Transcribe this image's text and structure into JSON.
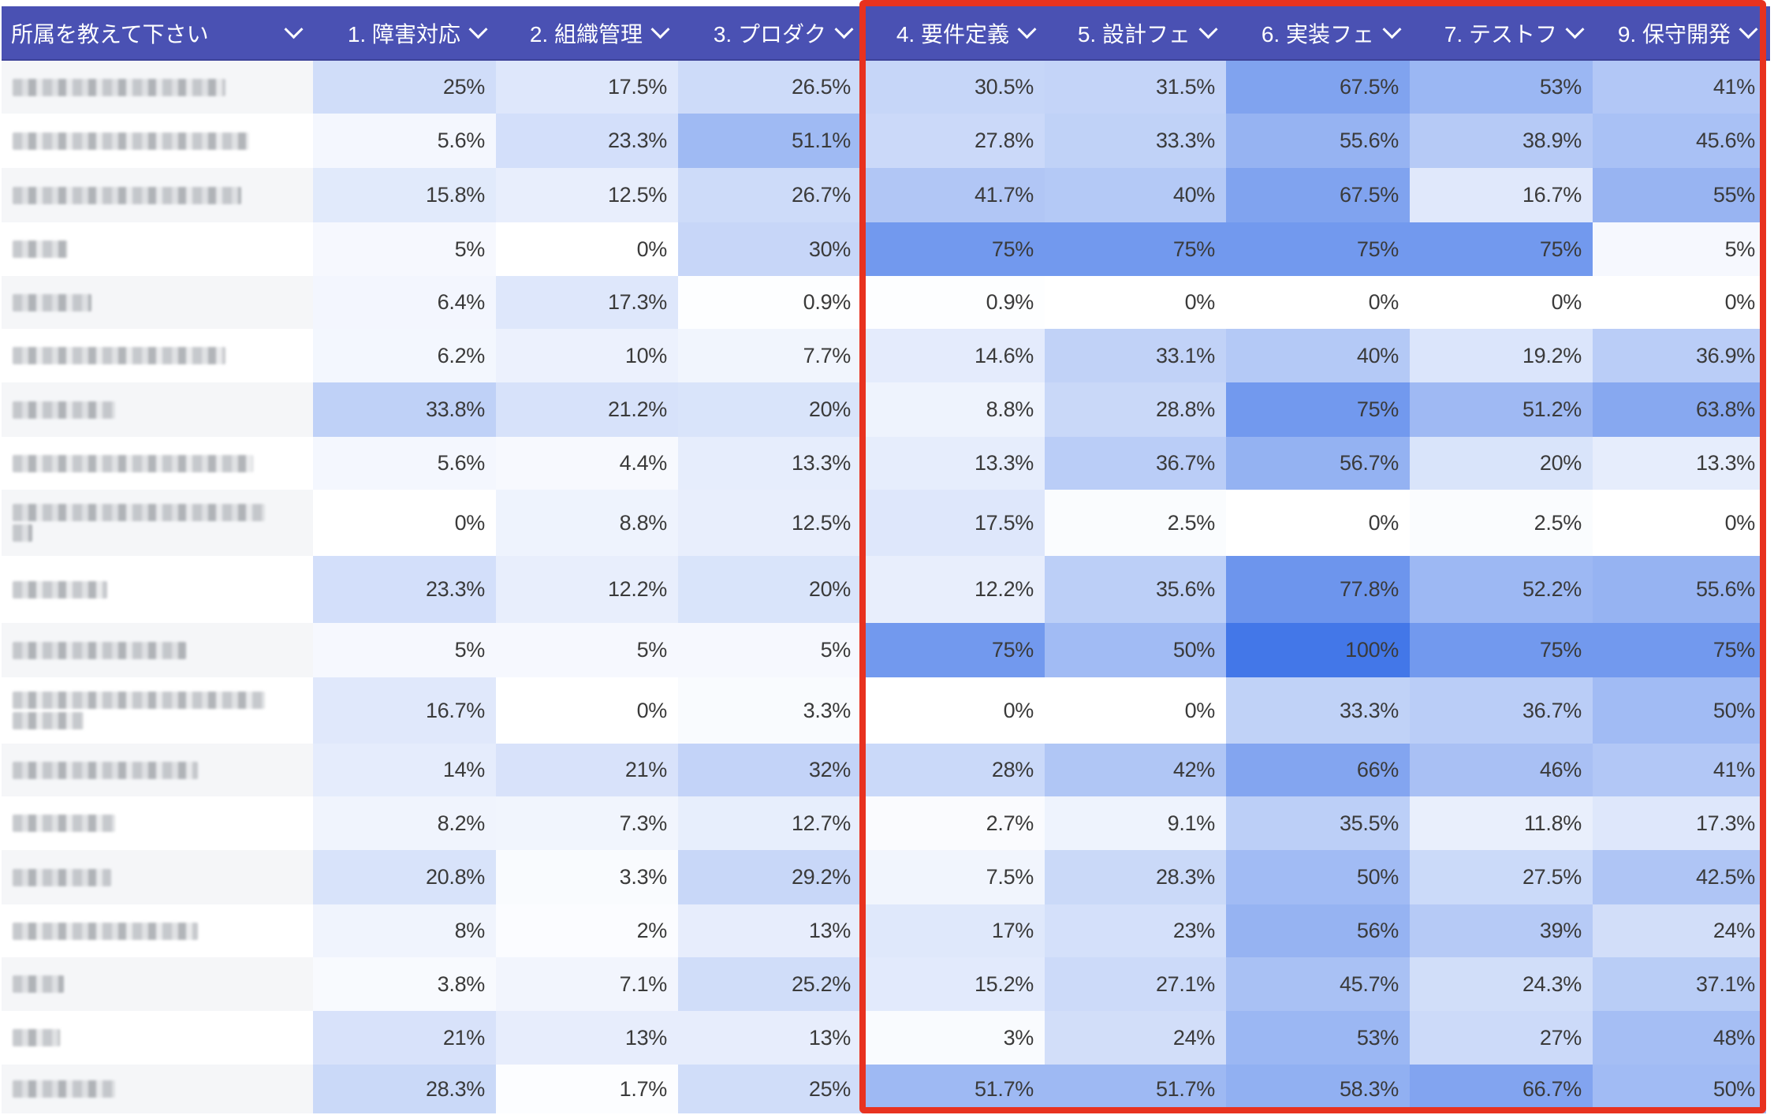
{
  "table": {
    "header": {
      "row_label_column": "所属を教えて下さい",
      "columns": [
        "1. 障害対応",
        "2. 組織管理",
        "3. プロダク",
        "4. 要件定義",
        "5. 設計フェ",
        "6. 実装フェ",
        "7. テストフ",
        "9. 保守開発"
      ],
      "dropdown_icon": "chevron-down-icon"
    },
    "row_labels_obscured": true,
    "rows": [
      {
        "label_lines": [
          1
        ],
        "label_width": [
          270
        ],
        "values": [
          "25%",
          "17.5%",
          "26.5%",
          "30.5%",
          "31.5%",
          "67.5%",
          "53%",
          "41%"
        ]
      },
      {
        "label_lines": [
          1
        ],
        "label_width": [
          300
        ],
        "values": [
          "5.6%",
          "23.3%",
          "51.1%",
          "27.8%",
          "33.3%",
          "55.6%",
          "38.9%",
          "45.6%"
        ]
      },
      {
        "label_lines": [
          1
        ],
        "label_width": [
          290
        ],
        "values": [
          "15.8%",
          "12.5%",
          "26.7%",
          "41.7%",
          "40%",
          "67.5%",
          "16.7%",
          "55%"
        ]
      },
      {
        "label_lines": [
          1
        ],
        "label_width": [
          70
        ],
        "values": [
          "5%",
          "0%",
          "30%",
          "75%",
          "75%",
          "75%",
          "75%",
          "5%"
        ]
      },
      {
        "label_lines": [
          1
        ],
        "label_width": [
          100
        ],
        "values": [
          "6.4%",
          "17.3%",
          "0.9%",
          "0.9%",
          "0%",
          "0%",
          "0%",
          "0%"
        ]
      },
      {
        "label_lines": [
          1
        ],
        "label_width": [
          270
        ],
        "values": [
          "6.2%",
          "10%",
          "7.7%",
          "14.6%",
          "33.1%",
          "40%",
          "19.2%",
          "36.9%"
        ]
      },
      {
        "label_lines": [
          1
        ],
        "label_width": [
          130
        ],
        "values": [
          "33.8%",
          "21.2%",
          "20%",
          "8.8%",
          "28.8%",
          "75%",
          "51.2%",
          "63.8%"
        ]
      },
      {
        "label_lines": [
          1
        ],
        "label_width": [
          305
        ],
        "values": [
          "5.6%",
          "4.4%",
          "13.3%",
          "13.3%",
          "36.7%",
          "56.7%",
          "20%",
          "13.3%"
        ]
      },
      {
        "label_lines": [
          2
        ],
        "label_width": [
          320,
          25
        ],
        "values": [
          "0%",
          "8.8%",
          "12.5%",
          "17.5%",
          "2.5%",
          "0%",
          "2.5%",
          "0%"
        ]
      },
      {
        "label_lines": [
          1
        ],
        "label_width": [
          120
        ],
        "values": [
          "23.3%",
          "12.2%",
          "20%",
          "12.2%",
          "35.6%",
          "77.8%",
          "52.2%",
          "55.6%"
        ]
      },
      {
        "label_lines": [
          1
        ],
        "label_width": [
          220
        ],
        "values": [
          "5%",
          "5%",
          "5%",
          "75%",
          "50%",
          "100%",
          "75%",
          "75%"
        ]
      },
      {
        "label_lines": [
          2
        ],
        "label_width": [
          320,
          90
        ],
        "values": [
          "16.7%",
          "0%",
          "3.3%",
          "0%",
          "0%",
          "33.3%",
          "36.7%",
          "50%"
        ]
      },
      {
        "label_lines": [
          1
        ],
        "label_width": [
          235
        ],
        "values": [
          "14%",
          "21%",
          "32%",
          "28%",
          "42%",
          "66%",
          "46%",
          "41%"
        ]
      },
      {
        "label_lines": [
          1
        ],
        "label_width": [
          130
        ],
        "values": [
          "8.2%",
          "7.3%",
          "12.7%",
          "2.7%",
          "9.1%",
          "35.5%",
          "11.8%",
          "17.3%"
        ]
      },
      {
        "label_lines": [
          1
        ],
        "label_width": [
          125
        ],
        "values": [
          "20.8%",
          "3.3%",
          "29.2%",
          "7.5%",
          "28.3%",
          "50%",
          "27.5%",
          "42.5%"
        ]
      },
      {
        "label_lines": [
          1
        ],
        "label_width": [
          235
        ],
        "values": [
          "8%",
          "2%",
          "13%",
          "17%",
          "23%",
          "56%",
          "39%",
          "24%"
        ]
      },
      {
        "label_lines": [
          1
        ],
        "label_width": [
          65
        ],
        "values": [
          "3.8%",
          "7.1%",
          "25.2%",
          "15.2%",
          "27.1%",
          "45.7%",
          "24.3%",
          "37.1%"
        ]
      },
      {
        "label_lines": [
          1
        ],
        "label_width": [
          60
        ],
        "values": [
          "21%",
          "13%",
          "13%",
          "3%",
          "24%",
          "53%",
          "27%",
          "48%"
        ]
      },
      {
        "label_lines": [
          1
        ],
        "label_width": [
          130
        ],
        "values": [
          "28.3%",
          "1.7%",
          "25%",
          "51.7%",
          "51.7%",
          "58.3%",
          "66.7%",
          "50%"
        ]
      }
    ]
  },
  "heatmap_scale": {
    "min_color": "#ffffff",
    "max_color": "#4377e8",
    "min_value": 0,
    "max_value": 100
  },
  "header_color": "#4a51b3",
  "highlight": {
    "color": "#e8321f",
    "covers_columns": [
      "4. 要件定義",
      "5. 設計フェ",
      "6. 実装フェ",
      "7. テストフ",
      "9. 保守開発"
    ]
  }
}
